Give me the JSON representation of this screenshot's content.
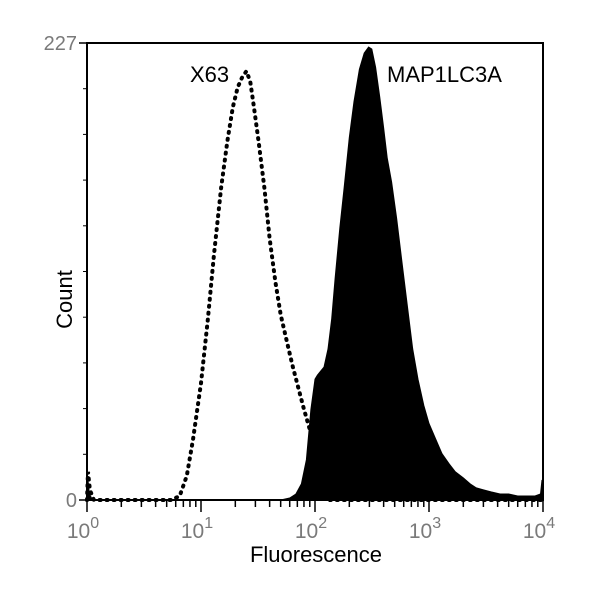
{
  "chart_data": {
    "type": "area",
    "xlabel": "Fluorescence",
    "ylabel": "Count",
    "xscale": "log",
    "xlim": [
      1,
      10000
    ],
    "ylim": [
      0,
      227
    ],
    "x_ticks": [
      {
        "value": 1,
        "base": "10",
        "exp": "0"
      },
      {
        "value": 10,
        "base": "10",
        "exp": "1"
      },
      {
        "value": 100,
        "base": "10",
        "exp": "2"
      },
      {
        "value": 1000,
        "base": "10",
        "exp": "3"
      },
      {
        "value": 10000,
        "base": "10",
        "exp": "4"
      }
    ],
    "y_ticks": [
      "0",
      "227"
    ],
    "grid": false,
    "series": [
      {
        "name": "X63",
        "style": "dotted",
        "color": "#000000",
        "points": [
          [
            1,
            0
          ],
          [
            1.02,
            14
          ],
          [
            1.06,
            5
          ],
          [
            1.15,
            0
          ],
          [
            2,
            0
          ],
          [
            4,
            0
          ],
          [
            5.5,
            0
          ],
          [
            6.5,
            2
          ],
          [
            7.5,
            12
          ],
          [
            8.5,
            30
          ],
          [
            10,
            58
          ],
          [
            11.5,
            90
          ],
          [
            13,
            122
          ],
          [
            15,
            155
          ],
          [
            17,
            178
          ],
          [
            19,
            195
          ],
          [
            21,
            205
          ],
          [
            23,
            210
          ],
          [
            25,
            213
          ],
          [
            27,
            208
          ],
          [
            29,
            196
          ],
          [
            32,
            178
          ],
          [
            36,
            155
          ],
          [
            40,
            130
          ],
          [
            45,
            108
          ],
          [
            50,
            92
          ],
          [
            57,
            78
          ],
          [
            64,
            66
          ],
          [
            72,
            55
          ],
          [
            80,
            45
          ],
          [
            90,
            35
          ],
          [
            100,
            22
          ],
          [
            110,
            10
          ],
          [
            120,
            3
          ],
          [
            135,
            0
          ],
          [
            10000,
            0
          ]
        ]
      },
      {
        "name": "MAP1LC3A",
        "style": "filled",
        "color": "#000000",
        "points": [
          [
            1,
            0
          ],
          [
            1.01,
            12
          ],
          [
            1.05,
            3
          ],
          [
            1.12,
            0
          ],
          [
            50,
            0
          ],
          [
            60,
            1
          ],
          [
            68,
            3
          ],
          [
            76,
            8
          ],
          [
            84,
            20
          ],
          [
            92,
            45
          ],
          [
            100,
            60
          ],
          [
            105,
            62
          ],
          [
            112,
            64
          ],
          [
            120,
            66
          ],
          [
            130,
            75
          ],
          [
            140,
            90
          ],
          [
            150,
            110
          ],
          [
            165,
            135
          ],
          [
            180,
            155
          ],
          [
            200,
            180
          ],
          [
            220,
            198
          ],
          [
            245,
            214
          ],
          [
            270,
            222
          ],
          [
            295,
            225
          ],
          [
            315,
            224
          ],
          [
            340,
            215
          ],
          [
            370,
            200
          ],
          [
            400,
            185
          ],
          [
            430,
            170
          ],
          [
            470,
            158
          ],
          [
            520,
            140
          ],
          [
            580,
            118
          ],
          [
            650,
            95
          ],
          [
            720,
            75
          ],
          [
            800,
            60
          ],
          [
            900,
            47
          ],
          [
            1000,
            38
          ],
          [
            1150,
            30
          ],
          [
            1300,
            23
          ],
          [
            1500,
            18
          ],
          [
            1700,
            14
          ],
          [
            2000,
            11
          ],
          [
            2300,
            8
          ],
          [
            2600,
            6
          ],
          [
            3000,
            5
          ],
          [
            3500,
            4
          ],
          [
            4200,
            3
          ],
          [
            5000,
            3
          ],
          [
            6000,
            2
          ],
          [
            7000,
            2
          ],
          [
            8500,
            2
          ],
          [
            9500,
            3
          ],
          [
            9800,
            10
          ],
          [
            10000,
            0
          ]
        ]
      }
    ]
  }
}
